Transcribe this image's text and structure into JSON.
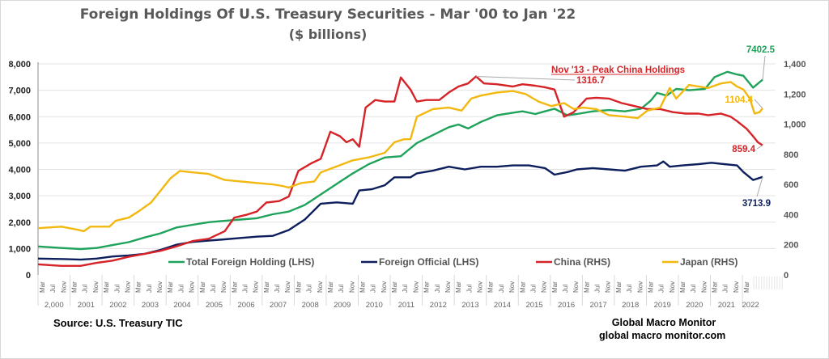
{
  "title": "Foreign Holdings Of U.S. Treasury Securities - Mar '00 to Jan '22",
  "subtitle": "($ billions)",
  "source": "Source:  U.S. Treasury TIC",
  "brand_name": "Global Macro Monitor",
  "brand_url": "global macro monitor.com",
  "chart_data": {
    "type": "line",
    "title": "Foreign Holdings Of U.S. Treasury Securities - Mar '00 to Jan '22",
    "subtitle": "($ billions)",
    "x_range": [
      "Mar 2000",
      "Jan 2022"
    ],
    "left_axis": {
      "label": "LHS",
      "ylim": [
        0,
        8000
      ],
      "ticks": [
        "0",
        "1,000",
        "2,000",
        "3,000",
        "4,000",
        "5,000",
        "6,000",
        "7,000",
        "8,000"
      ]
    },
    "right_axis": {
      "label": "RHS",
      "ylim": [
        0,
        1400
      ],
      "ticks": [
        "0",
        "200",
        "400",
        "600",
        "800",
        "1,000",
        "1,200",
        "1,400"
      ]
    },
    "month_ticks": [
      "Mar",
      "Jul",
      "Nov"
    ],
    "year_labels": [
      "2,000",
      "2001",
      "2002",
      "2003",
      "2004",
      "2005",
      "2006",
      "2007",
      "2008",
      "2009",
      "2010",
      "2011",
      "2012",
      "2013",
      "2014",
      "2015",
      "2016",
      "2017",
      "2018",
      "2019",
      "2020",
      "2021",
      "2022"
    ],
    "grid": true,
    "legend": {
      "placement": "bottom-inside"
    },
    "series": [
      {
        "name": "Total Foreign Holding (LHS)",
        "axis": "left",
        "color": "#1fa35a",
        "points": [
          [
            2000.17,
            1080
          ],
          [
            2000.9,
            1020
          ],
          [
            2001.5,
            980
          ],
          [
            2002.0,
            1020
          ],
          [
            2002.5,
            1130
          ],
          [
            2003.0,
            1240
          ],
          [
            2003.5,
            1420
          ],
          [
            2004.0,
            1580
          ],
          [
            2004.5,
            1800
          ],
          [
            2005.0,
            1900
          ],
          [
            2005.5,
            2000
          ],
          [
            2006.0,
            2050
          ],
          [
            2006.5,
            2100
          ],
          [
            2007.0,
            2150
          ],
          [
            2007.5,
            2300
          ],
          [
            2008.0,
            2400
          ],
          [
            2008.5,
            2650
          ],
          [
            2009.0,
            3050
          ],
          [
            2009.5,
            3450
          ],
          [
            2010.0,
            3850
          ],
          [
            2010.5,
            4200
          ],
          [
            2011.0,
            4450
          ],
          [
            2011.5,
            4500
          ],
          [
            2012.0,
            5000
          ],
          [
            2012.5,
            5300
          ],
          [
            2013.0,
            5600
          ],
          [
            2013.3,
            5700
          ],
          [
            2013.6,
            5550
          ],
          [
            2014.0,
            5800
          ],
          [
            2014.5,
            6050
          ],
          [
            2015.0,
            6150
          ],
          [
            2015.3,
            6200
          ],
          [
            2015.7,
            6100
          ],
          [
            2016.0,
            6200
          ],
          [
            2016.3,
            6300
          ],
          [
            2016.7,
            6050
          ],
          [
            2017.0,
            6100
          ],
          [
            2017.5,
            6200
          ],
          [
            2018.0,
            6250
          ],
          [
            2018.5,
            6200
          ],
          [
            2019.0,
            6300
          ],
          [
            2019.3,
            6600
          ],
          [
            2019.5,
            6900
          ],
          [
            2019.8,
            6800
          ],
          [
            2020.1,
            7050
          ],
          [
            2020.5,
            7000
          ],
          [
            2021.0,
            7050
          ],
          [
            2021.3,
            7500
          ],
          [
            2021.7,
            7700
          ],
          [
            2022.0,
            7600
          ],
          [
            2022.2,
            7550
          ],
          [
            2022.5,
            7100
          ],
          [
            2022.8,
            7402.5
          ]
        ]
      },
      {
        "name": "Foreign Official (LHS)",
        "axis": "left",
        "color": "#0c1f5c",
        "points": [
          [
            2000.17,
            620
          ],
          [
            2001.0,
            600
          ],
          [
            2001.5,
            580
          ],
          [
            2002.0,
            620
          ],
          [
            2002.5,
            700
          ],
          [
            2003.0,
            740
          ],
          [
            2003.5,
            800
          ],
          [
            2004.0,
            950
          ],
          [
            2004.5,
            1150
          ],
          [
            2005.0,
            1250
          ],
          [
            2005.5,
            1300
          ],
          [
            2006.0,
            1350
          ],
          [
            2006.5,
            1400
          ],
          [
            2007.0,
            1450
          ],
          [
            2007.5,
            1480
          ],
          [
            2008.0,
            1700
          ],
          [
            2008.5,
            2100
          ],
          [
            2009.0,
            2700
          ],
          [
            2009.5,
            2750
          ],
          [
            2010.0,
            2700
          ],
          [
            2010.2,
            3200
          ],
          [
            2010.6,
            3250
          ],
          [
            2011.0,
            3400
          ],
          [
            2011.3,
            3700
          ],
          [
            2011.8,
            3700
          ],
          [
            2012.0,
            3850
          ],
          [
            2012.5,
            3950
          ],
          [
            2013.0,
            4100
          ],
          [
            2013.5,
            4000
          ],
          [
            2014.0,
            4100
          ],
          [
            2014.5,
            4100
          ],
          [
            2015.0,
            4150
          ],
          [
            2015.5,
            4150
          ],
          [
            2016.0,
            4050
          ],
          [
            2016.3,
            3800
          ],
          [
            2016.7,
            3900
          ],
          [
            2017.0,
            4000
          ],
          [
            2017.5,
            4050
          ],
          [
            2018.0,
            4000
          ],
          [
            2018.5,
            3950
          ],
          [
            2019.0,
            4100
          ],
          [
            2019.5,
            4150
          ],
          [
            2019.7,
            4300
          ],
          [
            2019.9,
            4100
          ],
          [
            2020.3,
            4150
          ],
          [
            2020.8,
            4200
          ],
          [
            2021.2,
            4250
          ],
          [
            2021.6,
            4200
          ],
          [
            2022.0,
            4150
          ],
          [
            2022.2,
            3900
          ],
          [
            2022.5,
            3600
          ],
          [
            2022.8,
            3713.9
          ]
        ]
      },
      {
        "name": "China (RHS)",
        "axis": "right",
        "color": "#d52327",
        "points": [
          [
            2000.17,
            70
          ],
          [
            2000.9,
            60
          ],
          [
            2001.5,
            60
          ],
          [
            2002.0,
            80
          ],
          [
            2002.5,
            95
          ],
          [
            2003.0,
            120
          ],
          [
            2003.5,
            140
          ],
          [
            2004.0,
            160
          ],
          [
            2004.5,
            190
          ],
          [
            2005.0,
            225
          ],
          [
            2005.5,
            240
          ],
          [
            2006.0,
            290
          ],
          [
            2006.3,
            380
          ],
          [
            2006.7,
            400
          ],
          [
            2007.0,
            420
          ],
          [
            2007.3,
            480
          ],
          [
            2007.7,
            490
          ],
          [
            2008.0,
            520
          ],
          [
            2008.3,
            690
          ],
          [
            2008.7,
            740
          ],
          [
            2009.0,
            770
          ],
          [
            2009.3,
            950
          ],
          [
            2009.6,
            920
          ],
          [
            2009.8,
            880
          ],
          [
            2010.0,
            900
          ],
          [
            2010.2,
            850
          ],
          [
            2010.4,
            1110
          ],
          [
            2010.7,
            1160
          ],
          [
            2011.0,
            1150
          ],
          [
            2011.3,
            1150
          ],
          [
            2011.5,
            1310
          ],
          [
            2011.8,
            1230
          ],
          [
            2012.0,
            1150
          ],
          [
            2012.3,
            1160
          ],
          [
            2012.7,
            1160
          ],
          [
            2013.0,
            1210
          ],
          [
            2013.3,
            1250
          ],
          [
            2013.6,
            1270
          ],
          [
            2013.85,
            1316.7
          ],
          [
            2014.1,
            1270
          ],
          [
            2014.5,
            1265
          ],
          [
            2015.0,
            1250
          ],
          [
            2015.3,
            1265
          ],
          [
            2015.7,
            1255
          ],
          [
            2016.0,
            1245
          ],
          [
            2016.3,
            1230
          ],
          [
            2016.6,
            1050
          ],
          [
            2016.9,
            1080
          ],
          [
            2017.3,
            1170
          ],
          [
            2017.6,
            1175
          ],
          [
            2018.0,
            1170
          ],
          [
            2018.4,
            1140
          ],
          [
            2018.8,
            1120
          ],
          [
            2019.2,
            1100
          ],
          [
            2019.6,
            1100
          ],
          [
            2020.0,
            1080
          ],
          [
            2020.4,
            1070
          ],
          [
            2020.8,
            1070
          ],
          [
            2021.1,
            1060
          ],
          [
            2021.5,
            1070
          ],
          [
            2021.8,
            1050
          ],
          [
            2022.0,
            1020
          ],
          [
            2022.3,
            970
          ],
          [
            2022.5,
            920
          ],
          [
            2022.65,
            880
          ],
          [
            2022.8,
            859.4
          ]
        ]
      },
      {
        "name": "Japan (RHS)",
        "axis": "right",
        "color": "#f3b80f",
        "points": [
          [
            2000.17,
            310
          ],
          [
            2000.9,
            320
          ],
          [
            2001.4,
            300
          ],
          [
            2001.6,
            290
          ],
          [
            2001.8,
            320
          ],
          [
            2002.4,
            320
          ],
          [
            2002.6,
            360
          ],
          [
            2003.0,
            380
          ],
          [
            2003.3,
            420
          ],
          [
            2003.7,
            480
          ],
          [
            2004.0,
            560
          ],
          [
            2004.3,
            640
          ],
          [
            2004.6,
            690
          ],
          [
            2005.0,
            680
          ],
          [
            2005.5,
            670
          ],
          [
            2006.0,
            630
          ],
          [
            2006.5,
            620
          ],
          [
            2007.0,
            610
          ],
          [
            2007.5,
            600
          ],
          [
            2007.8,
            590
          ],
          [
            2008.0,
            580
          ],
          [
            2008.4,
            610
          ],
          [
            2008.8,
            620
          ],
          [
            2009.0,
            680
          ],
          [
            2009.5,
            720
          ],
          [
            2010.0,
            760
          ],
          [
            2010.5,
            780
          ],
          [
            2011.0,
            810
          ],
          [
            2011.3,
            880
          ],
          [
            2011.6,
            900
          ],
          [
            2011.8,
            900
          ],
          [
            2012.0,
            1050
          ],
          [
            2012.5,
            1100
          ],
          [
            2013.0,
            1110
          ],
          [
            2013.4,
            1090
          ],
          [
            2013.7,
            1170
          ],
          [
            2014.0,
            1190
          ],
          [
            2014.5,
            1210
          ],
          [
            2015.0,
            1220
          ],
          [
            2015.4,
            1200
          ],
          [
            2015.8,
            1150
          ],
          [
            2016.2,
            1120
          ],
          [
            2016.6,
            1140
          ],
          [
            2016.9,
            1100
          ],
          [
            2017.2,
            1110
          ],
          [
            2017.6,
            1100
          ],
          [
            2018.0,
            1060
          ],
          [
            2018.5,
            1050
          ],
          [
            2018.9,
            1040
          ],
          [
            2019.2,
            1090
          ],
          [
            2019.6,
            1110
          ],
          [
            2019.9,
            1240
          ],
          [
            2020.1,
            1170
          ],
          [
            2020.5,
            1260
          ],
          [
            2020.8,
            1250
          ],
          [
            2021.1,
            1240
          ],
          [
            2021.5,
            1270
          ],
          [
            2021.8,
            1280
          ],
          [
            2022.0,
            1250
          ],
          [
            2022.2,
            1230
          ],
          [
            2022.4,
            1170
          ],
          [
            2022.55,
            1070
          ],
          [
            2022.7,
            1080
          ],
          [
            2022.8,
            1104.4
          ]
        ]
      }
    ],
    "annotations": [
      {
        "text": "Nov '13 - Peak China Holdings",
        "color": "#d52327",
        "underline": true
      },
      {
        "text": "1316.7",
        "series": "China (RHS)",
        "color": "#d52327"
      },
      {
        "text": "7402.5",
        "series": "Total Foreign Holding (LHS)",
        "color": "#1fa35a"
      },
      {
        "text": "1104.4",
        "series": "Japan (RHS)",
        "color": "#f3b80f"
      },
      {
        "text": "859.4",
        "series": "China (RHS)",
        "color": "#d52327"
      },
      {
        "text": "3713.9",
        "series": "Foreign Official (LHS)",
        "color": "#0c1f5c"
      }
    ]
  }
}
